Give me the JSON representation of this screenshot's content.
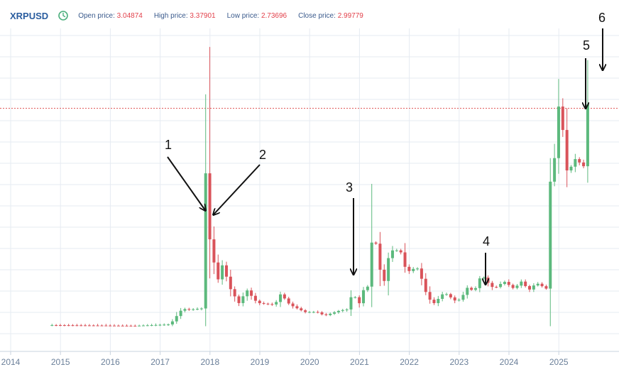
{
  "header": {
    "symbol": "XRPUSD",
    "icon": "clock-icon",
    "open_label": "Open price:",
    "open_value": "3.04874",
    "high_label": "High price:",
    "high_value": "3.37901",
    "low_label": "Low price:",
    "low_value": "2.73696",
    "close_label": "Close price:",
    "close_value": "2.99779"
  },
  "colors": {
    "up": "#5cb97d",
    "down": "#d9535a",
    "grid": "#e6ebf2",
    "current_price_line": "#e05a5a",
    "axis_text": "#6a7f99"
  },
  "chart_data": {
    "type": "candlestick",
    "title": "XRPUSD",
    "interval": "monthly",
    "current_price": 2.99779,
    "x_axis_labels": [
      "2014",
      "2015",
      "2016",
      "2017",
      "2018",
      "2019",
      "2020",
      "2021",
      "2022",
      "2023",
      "2024",
      "2025"
    ],
    "y_axis": "hidden",
    "candles_summary": [
      {
        "period": "2014-11",
        "open": 0.02,
        "high": 0.03,
        "low": 0.01,
        "close": 0.02
      },
      {
        "period": "2017-03",
        "open": 0.01,
        "high": 0.1,
        "low": 0.01,
        "close": 0.03
      },
      {
        "period": "2017-12",
        "open": 0.25,
        "high": 2.85,
        "low": 0.19,
        "close": 2.3
      },
      {
        "period": "2018-01",
        "open": 2.3,
        "high": 3.84,
        "low": 0.87,
        "close": 1.15
      },
      {
        "period": "2020-11",
        "open": 0.24,
        "high": 0.78,
        "low": 0.22,
        "close": 0.62
      },
      {
        "period": "2021-04",
        "open": 0.57,
        "high": 1.96,
        "low": 0.57,
        "close": 1.57
      },
      {
        "period": "2023-03",
        "open": 0.37,
        "high": 0.59,
        "low": 0.35,
        "close": 0.54
      },
      {
        "period": "2024-11",
        "open": 0.5,
        "high": 1.9,
        "low": 0.5,
        "close": 1.9
      },
      {
        "period": "2025-01",
        "open": 2.08,
        "high": 3.4,
        "low": 2.0,
        "close": 3.05
      },
      {
        "period": "2025-07",
        "open": 2.2,
        "high": 3.66,
        "low": 2.2,
        "close": 3.05
      },
      {
        "period": "2025-08",
        "open": 3.05,
        "high": 3.38,
        "low": 2.74,
        "close": 3.0
      }
    ],
    "annotations": [
      {
        "label": "1"
      },
      {
        "label": "2"
      },
      {
        "label": "3"
      },
      {
        "label": "4"
      },
      {
        "label": "5"
      },
      {
        "label": "6"
      }
    ]
  }
}
